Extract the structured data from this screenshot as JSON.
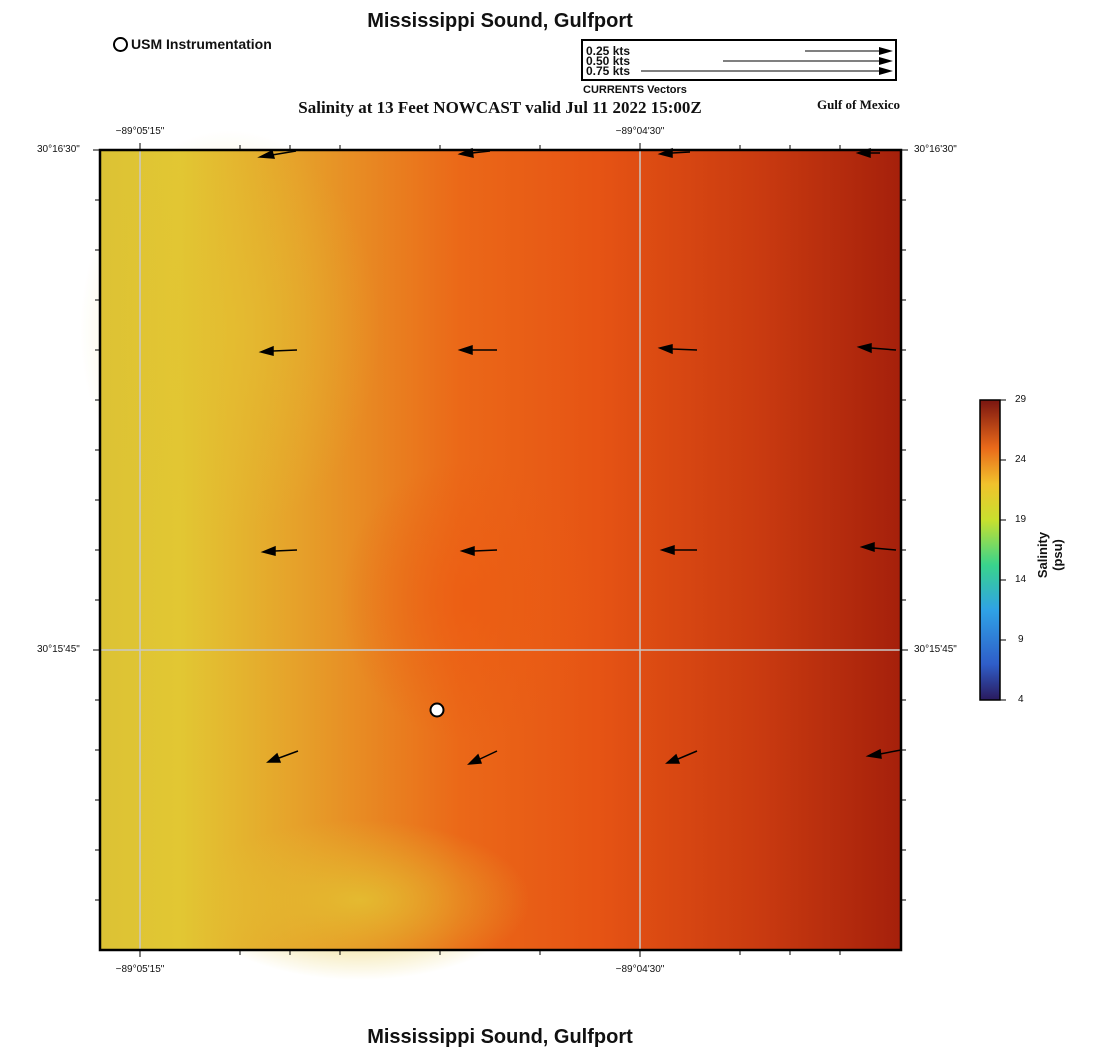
{
  "title": "Mississippi Sound, Gulfport",
  "subtitle": "Salinity at 13 Feet NOWCAST valid Jul 11 2022 15:00Z",
  "region_label": "Gulf of Mexico",
  "footer_title": "Mississippi Sound, Gulfport",
  "station_legend": {
    "label": "USM Instrumentation"
  },
  "vector_legend": {
    "speeds": [
      "0.25 kts",
      "0.50 kts",
      "0.75 kts"
    ],
    "caption": "CURRENTS Vectors"
  },
  "axes": {
    "lon_ticks": [
      "−89°05'15\"",
      "−89°04'30\""
    ],
    "lat_ticks": [
      "30°16'30\"",
      "30°15'45\""
    ]
  },
  "colorbar": {
    "title": "Salinity (psu)",
    "ticks": [
      "29",
      "24",
      "19",
      "14",
      "9",
      "4"
    ],
    "range": [
      4,
      29
    ]
  },
  "colors": {
    "low": "#e3c832",
    "mid": "#ea5a16",
    "high": "#a8220c"
  }
}
